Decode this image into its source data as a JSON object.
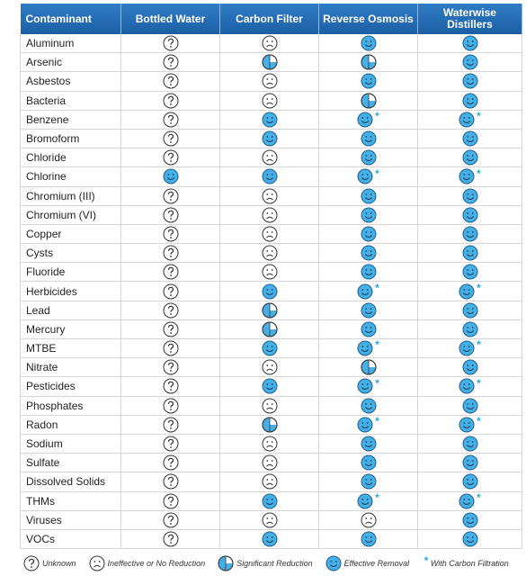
{
  "header": {
    "columns": [
      "Contaminant",
      "Bottled Water",
      "Carbon Filter",
      "Reverse Osmosis",
      "Waterwise Distillers"
    ]
  },
  "legend": [
    {
      "label": "Unknown"
    },
    {
      "label": "Ineffective or No Reduction"
    },
    {
      "label": "Significant Reduction"
    },
    {
      "label": "Effective Removal"
    },
    {
      "symbol": "*",
      "label": "With Carbon Filtration"
    }
  ],
  "rows": [
    {
      "name": "Aluminum",
      "status": [
        "Unknown",
        "Ineffective or No Reduction",
        "Effective Removal",
        "Effective Removal"
      ],
      "carbon": false
    },
    {
      "name": "Arsenic",
      "status": [
        "Unknown",
        "Significant Reduction",
        "Significant Reduction",
        "Effective Removal"
      ],
      "carbon": false
    },
    {
      "name": "Asbestos",
      "status": [
        "Unknown",
        "Ineffective or No Reduction",
        "Effective Removal",
        "Effective Removal"
      ],
      "carbon": false
    },
    {
      "name": "Bacteria",
      "status": [
        "Unknown",
        "Ineffective or No Reduction",
        "Significant Reduction",
        "Effective Removal"
      ],
      "carbon": false
    },
    {
      "name": "Benzene",
      "status": [
        "Unknown",
        "Effective Removal",
        "Effective Removal",
        "Effective Removal"
      ],
      "carbon": true
    },
    {
      "name": "Bromoform",
      "status": [
        "Unknown",
        "Effective Removal",
        "Effective Removal",
        "Effective Removal"
      ],
      "carbon": false
    },
    {
      "name": "Chloride",
      "status": [
        "Unknown",
        "Ineffective or No Reduction",
        "Effective Removal",
        "Effective Removal"
      ],
      "carbon": false
    },
    {
      "name": "Chlorine",
      "status": [
        "Effective Removal",
        "Effective Removal",
        "Effective Removal",
        "Effective Removal"
      ],
      "carbon": true
    },
    {
      "name": "Chromium (III)",
      "status": [
        "Unknown",
        "Ineffective or No Reduction",
        "Effective Removal",
        "Effective Removal"
      ],
      "carbon": false
    },
    {
      "name": "Chromium (VI)",
      "status": [
        "Unknown",
        "Ineffective or No Reduction",
        "Effective Removal",
        "Effective Removal"
      ],
      "carbon": false
    },
    {
      "name": "Copper",
      "status": [
        "Unknown",
        "Ineffective or No Reduction",
        "Effective Removal",
        "Effective Removal"
      ],
      "carbon": false
    },
    {
      "name": "Cysts",
      "status": [
        "Unknown",
        "Ineffective or No Reduction",
        "Effective Removal",
        "Effective Removal"
      ],
      "carbon": false
    },
    {
      "name": "Fluoride",
      "status": [
        "Unknown",
        "Ineffective or No Reduction",
        "Effective Removal",
        "Effective Removal"
      ],
      "carbon": false
    },
    {
      "name": "Herbicides",
      "status": [
        "Unknown",
        "Effective Removal",
        "Effective Removal",
        "Effective Removal"
      ],
      "carbon": true
    },
    {
      "name": "Lead",
      "status": [
        "Unknown",
        "Significant Reduction",
        "Effective Removal",
        "Effective Removal"
      ],
      "carbon": false
    },
    {
      "name": "Mercury",
      "status": [
        "Unknown",
        "Significant Reduction",
        "Effective Removal",
        "Effective Removal"
      ],
      "carbon": false
    },
    {
      "name": "MTBE",
      "status": [
        "Unknown",
        "Effective Removal",
        "Effective Removal",
        "Effective Removal"
      ],
      "carbon": true
    },
    {
      "name": "Nitrate",
      "status": [
        "Unknown",
        "Ineffective or No Reduction",
        "Significant Reduction",
        "Effective Removal"
      ],
      "carbon": false
    },
    {
      "name": "Pesticides",
      "status": [
        "Unknown",
        "Effective Removal",
        "Effective Removal",
        "Effective Removal"
      ],
      "carbon": true
    },
    {
      "name": "Phosphates",
      "status": [
        "Unknown",
        "Ineffective or No Reduction",
        "Effective Removal",
        "Effective Removal"
      ],
      "carbon": false
    },
    {
      "name": "Radon",
      "status": [
        "Unknown",
        "Significant Reduction",
        "Effective Removal",
        "Effective Removal"
      ],
      "carbon": true
    },
    {
      "name": "Sodium",
      "status": [
        "Unknown",
        "Ineffective or No Reduction",
        "Effective Removal",
        "Effective Removal"
      ],
      "carbon": false
    },
    {
      "name": "Sulfate",
      "status": [
        "Unknown",
        "Ineffective or No Reduction",
        "Effective Removal",
        "Effective Removal"
      ],
      "carbon": false
    },
    {
      "name": "Dissolved Solids",
      "status": [
        "Unknown",
        "Ineffective or No Reduction",
        "Effective Removal",
        "Effective Removal"
      ],
      "carbon": false
    },
    {
      "name": "THMs",
      "status": [
        "Unknown",
        "Effective Removal",
        "Effective Removal",
        "Effective Removal"
      ],
      "carbon": true
    },
    {
      "name": "Viruses",
      "status": [
        "Unknown",
        "Ineffective or No Reduction",
        "Ineffective or No Reduction",
        "Effective Removal"
      ],
      "carbon": false
    },
    {
      "name": "VOCs",
      "status": [
        "Unknown",
        "Effective Removal",
        "Effective Removal",
        "Effective Removal"
      ],
      "carbon": false
    }
  ]
}
